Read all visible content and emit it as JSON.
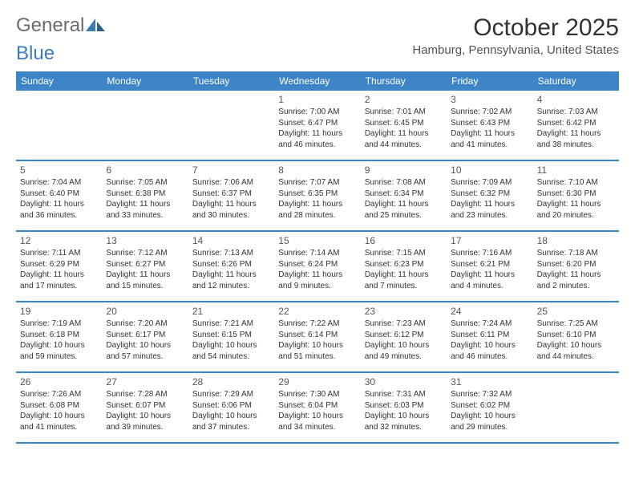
{
  "logo": {
    "text_gray": "General",
    "text_blue": "Blue"
  },
  "header": {
    "month_title": "October 2025",
    "location": "Hamburg, Pennsylvania, United States"
  },
  "colors": {
    "header_bar": "#3d85c6",
    "row_border": "#3d85c6",
    "text": "#333333",
    "logo_gray": "#6b6b6b",
    "logo_blue": "#3d7ab8"
  },
  "weekdays": [
    "Sunday",
    "Monday",
    "Tuesday",
    "Wednesday",
    "Thursday",
    "Friday",
    "Saturday"
  ],
  "weeks": [
    [
      null,
      null,
      null,
      {
        "n": "1",
        "sr": "7:00 AM",
        "ss": "6:47 PM",
        "dh": "11",
        "dm": "46"
      },
      {
        "n": "2",
        "sr": "7:01 AM",
        "ss": "6:45 PM",
        "dh": "11",
        "dm": "44"
      },
      {
        "n": "3",
        "sr": "7:02 AM",
        "ss": "6:43 PM",
        "dh": "11",
        "dm": "41"
      },
      {
        "n": "4",
        "sr": "7:03 AM",
        "ss": "6:42 PM",
        "dh": "11",
        "dm": "38"
      }
    ],
    [
      {
        "n": "5",
        "sr": "7:04 AM",
        "ss": "6:40 PM",
        "dh": "11",
        "dm": "36"
      },
      {
        "n": "6",
        "sr": "7:05 AM",
        "ss": "6:38 PM",
        "dh": "11",
        "dm": "33"
      },
      {
        "n": "7",
        "sr": "7:06 AM",
        "ss": "6:37 PM",
        "dh": "11",
        "dm": "30"
      },
      {
        "n": "8",
        "sr": "7:07 AM",
        "ss": "6:35 PM",
        "dh": "11",
        "dm": "28"
      },
      {
        "n": "9",
        "sr": "7:08 AM",
        "ss": "6:34 PM",
        "dh": "11",
        "dm": "25"
      },
      {
        "n": "10",
        "sr": "7:09 AM",
        "ss": "6:32 PM",
        "dh": "11",
        "dm": "23"
      },
      {
        "n": "11",
        "sr": "7:10 AM",
        "ss": "6:30 PM",
        "dh": "11",
        "dm": "20"
      }
    ],
    [
      {
        "n": "12",
        "sr": "7:11 AM",
        "ss": "6:29 PM",
        "dh": "11",
        "dm": "17"
      },
      {
        "n": "13",
        "sr": "7:12 AM",
        "ss": "6:27 PM",
        "dh": "11",
        "dm": "15"
      },
      {
        "n": "14",
        "sr": "7:13 AM",
        "ss": "6:26 PM",
        "dh": "11",
        "dm": "12"
      },
      {
        "n": "15",
        "sr": "7:14 AM",
        "ss": "6:24 PM",
        "dh": "11",
        "dm": "9"
      },
      {
        "n": "16",
        "sr": "7:15 AM",
        "ss": "6:23 PM",
        "dh": "11",
        "dm": "7"
      },
      {
        "n": "17",
        "sr": "7:16 AM",
        "ss": "6:21 PM",
        "dh": "11",
        "dm": "4"
      },
      {
        "n": "18",
        "sr": "7:18 AM",
        "ss": "6:20 PM",
        "dh": "11",
        "dm": "2"
      }
    ],
    [
      {
        "n": "19",
        "sr": "7:19 AM",
        "ss": "6:18 PM",
        "dh": "10",
        "dm": "59"
      },
      {
        "n": "20",
        "sr": "7:20 AM",
        "ss": "6:17 PM",
        "dh": "10",
        "dm": "57"
      },
      {
        "n": "21",
        "sr": "7:21 AM",
        "ss": "6:15 PM",
        "dh": "10",
        "dm": "54"
      },
      {
        "n": "22",
        "sr": "7:22 AM",
        "ss": "6:14 PM",
        "dh": "10",
        "dm": "51"
      },
      {
        "n": "23",
        "sr": "7:23 AM",
        "ss": "6:12 PM",
        "dh": "10",
        "dm": "49"
      },
      {
        "n": "24",
        "sr": "7:24 AM",
        "ss": "6:11 PM",
        "dh": "10",
        "dm": "46"
      },
      {
        "n": "25",
        "sr": "7:25 AM",
        "ss": "6:10 PM",
        "dh": "10",
        "dm": "44"
      }
    ],
    [
      {
        "n": "26",
        "sr": "7:26 AM",
        "ss": "6:08 PM",
        "dh": "10",
        "dm": "41"
      },
      {
        "n": "27",
        "sr": "7:28 AM",
        "ss": "6:07 PM",
        "dh": "10",
        "dm": "39"
      },
      {
        "n": "28",
        "sr": "7:29 AM",
        "ss": "6:06 PM",
        "dh": "10",
        "dm": "37"
      },
      {
        "n": "29",
        "sr": "7:30 AM",
        "ss": "6:04 PM",
        "dh": "10",
        "dm": "34"
      },
      {
        "n": "30",
        "sr": "7:31 AM",
        "ss": "6:03 PM",
        "dh": "10",
        "dm": "32"
      },
      {
        "n": "31",
        "sr": "7:32 AM",
        "ss": "6:02 PM",
        "dh": "10",
        "dm": "29"
      },
      null
    ]
  ],
  "labels": {
    "sunrise": "Sunrise:",
    "sunset": "Sunset:",
    "daylight": "Daylight:",
    "hours": "hours",
    "and": "and",
    "minutes": "minutes."
  }
}
